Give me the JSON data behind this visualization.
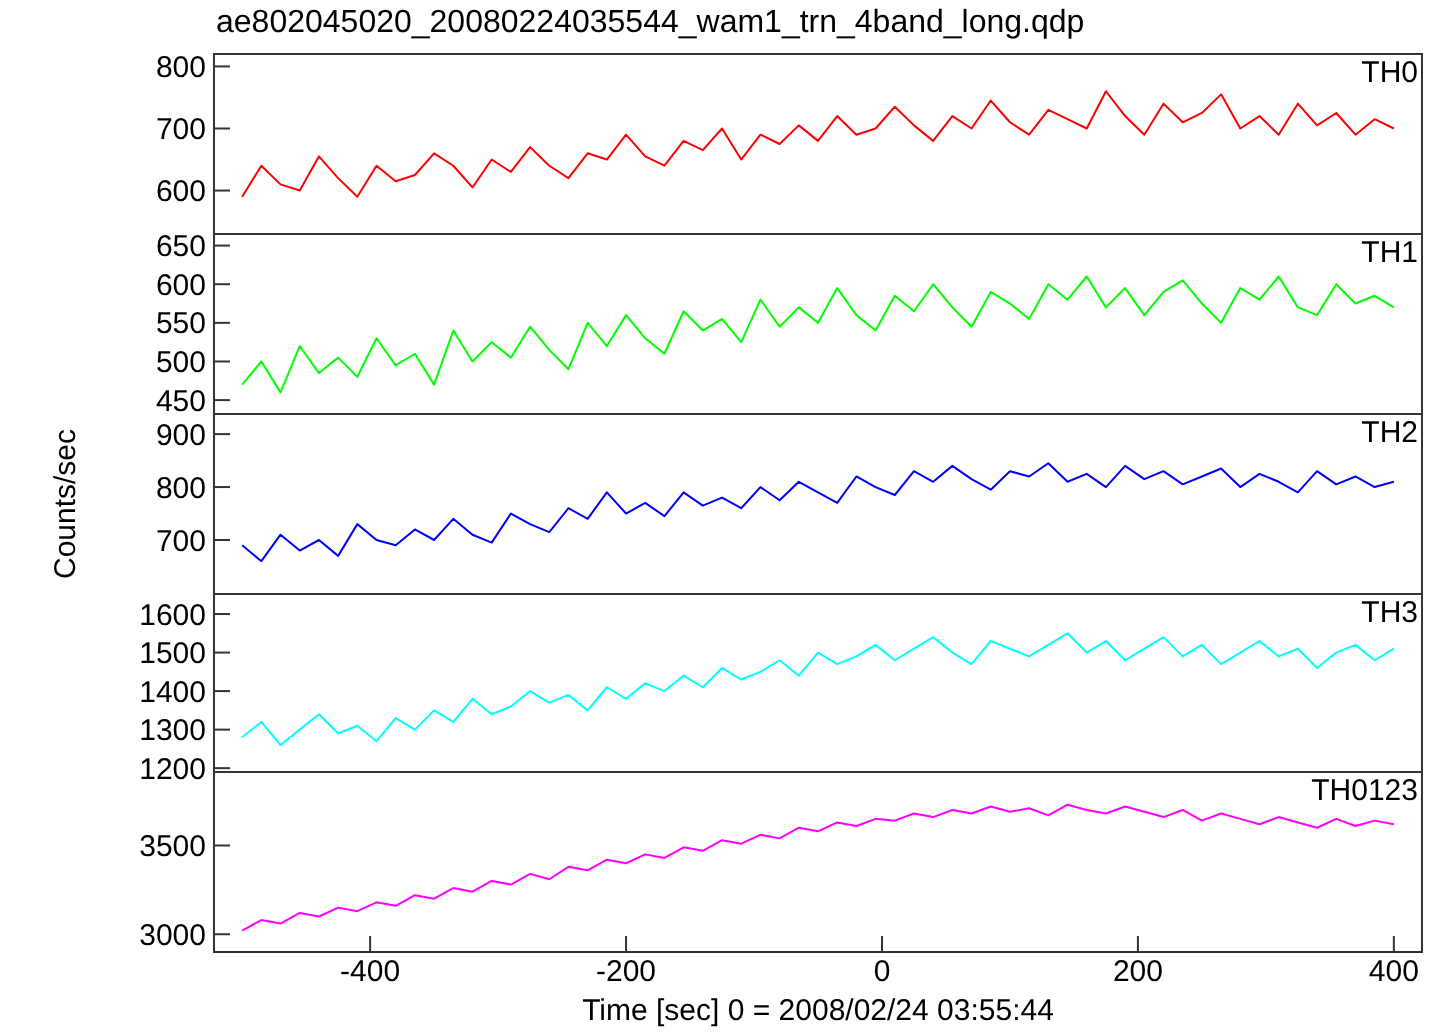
{
  "chart_data": [
    {
      "type": "line",
      "title": "ae802045020_20080224035544_wam1_trn_4band_long.qdp",
      "xlim": [
        -522,
        422
      ],
      "xticks": [
        -400,
        -200,
        0,
        200,
        400
      ],
      "ylim": [
        530,
        820
      ],
      "yticks": [
        600,
        700,
        800
      ],
      "tick_labels": "y",
      "grid": false,
      "marker": "none",
      "line_style": "solid",
      "x": [
        -500,
        -485,
        -470,
        -455,
        -440,
        -425,
        -410,
        -395,
        -380,
        -365,
        -350,
        -335,
        -320,
        -305,
        -290,
        -275,
        -260,
        -245,
        -230,
        -215,
        -200,
        -185,
        -170,
        -155,
        -140,
        -125,
        -110,
        -95,
        -80,
        -65,
        -50,
        -35,
        -20,
        -5,
        10,
        25,
        40,
        55,
        70,
        85,
        100,
        115,
        130,
        145,
        160,
        175,
        190,
        205,
        220,
        235,
        250,
        265,
        280,
        295,
        310,
        325,
        340,
        355,
        370,
        385,
        400
      ],
      "series": [
        {
          "name": "TH0",
          "color": "#ff0000",
          "values": [
            590,
            640,
            610,
            600,
            655,
            620,
            590,
            640,
            615,
            625,
            660,
            640,
            605,
            650,
            630,
            670,
            640,
            620,
            660,
            650,
            690,
            655,
            640,
            680,
            665,
            700,
            650,
            690,
            675,
            705,
            680,
            720,
            690,
            700,
            735,
            705,
            680,
            720,
            700,
            745,
            710,
            690,
            730,
            715,
            700,
            760,
            720,
            690,
            740,
            710,
            725,
            755,
            700,
            720,
            690,
            740,
            705,
            725,
            690,
            715,
            700
          ]
        }
      ]
    },
    {
      "type": "line",
      "xlim": [
        -522,
        422
      ],
      "xticks": [
        -400,
        -200,
        0,
        200,
        400
      ],
      "ylim": [
        432,
        665
      ],
      "yticks": [
        450,
        500,
        550,
        600,
        650
      ],
      "tick_labels": "y",
      "grid": false,
      "marker": "none",
      "line_style": "solid",
      "x": [
        -500,
        -485,
        -470,
        -455,
        -440,
        -425,
        -410,
        -395,
        -380,
        -365,
        -350,
        -335,
        -320,
        -305,
        -290,
        -275,
        -260,
        -245,
        -230,
        -215,
        -200,
        -185,
        -170,
        -155,
        -140,
        -125,
        -110,
        -95,
        -80,
        -65,
        -50,
        -35,
        -20,
        -5,
        10,
        25,
        40,
        55,
        70,
        85,
        100,
        115,
        130,
        145,
        160,
        175,
        190,
        205,
        220,
        235,
        250,
        265,
        280,
        295,
        310,
        325,
        340,
        355,
        370,
        385,
        400
      ],
      "series": [
        {
          "name": "TH1",
          "color": "#00ff00",
          "values": [
            470,
            500,
            460,
            520,
            485,
            505,
            480,
            530,
            495,
            510,
            470,
            540,
            500,
            525,
            505,
            545,
            515,
            490,
            550,
            520,
            560,
            530,
            510,
            565,
            540,
            555,
            525,
            580,
            545,
            570,
            550,
            595,
            560,
            540,
            585,
            565,
            600,
            570,
            545,
            590,
            575,
            555,
            600,
            580,
            610,
            570,
            595,
            560,
            590,
            605,
            575,
            550,
            595,
            580,
            610,
            570,
            560,
            600,
            575,
            585,
            570
          ]
        }
      ]
    },
    {
      "type": "line",
      "ylabel": "Counts/sec",
      "xlim": [
        -522,
        422
      ],
      "xticks": [
        -400,
        -200,
        0,
        200,
        400
      ],
      "ylim": [
        598,
        938
      ],
      "yticks": [
        700,
        800,
        900
      ],
      "tick_labels": "y",
      "grid": false,
      "marker": "none",
      "line_style": "solid",
      "x": [
        -500,
        -485,
        -470,
        -455,
        -440,
        -425,
        -410,
        -395,
        -380,
        -365,
        -350,
        -335,
        -320,
        -305,
        -290,
        -275,
        -260,
        -245,
        -230,
        -215,
        -200,
        -185,
        -170,
        -155,
        -140,
        -125,
        -110,
        -95,
        -80,
        -65,
        -50,
        -35,
        -20,
        -5,
        10,
        25,
        40,
        55,
        70,
        85,
        100,
        115,
        130,
        145,
        160,
        175,
        190,
        205,
        220,
        235,
        250,
        265,
        280,
        295,
        310,
        325,
        340,
        355,
        370,
        385,
        400
      ],
      "series": [
        {
          "name": "TH2",
          "color": "#0000ff",
          "values": [
            690,
            660,
            710,
            680,
            700,
            670,
            730,
            700,
            690,
            720,
            700,
            740,
            710,
            695,
            750,
            730,
            715,
            760,
            740,
            790,
            750,
            770,
            745,
            790,
            765,
            780,
            760,
            800,
            775,
            810,
            790,
            770,
            820,
            800,
            785,
            830,
            810,
            840,
            815,
            795,
            830,
            820,
            845,
            810,
            825,
            800,
            840,
            815,
            830,
            805,
            820,
            835,
            800,
            825,
            810,
            790,
            830,
            805,
            820,
            800,
            810
          ]
        }
      ]
    },
    {
      "type": "line",
      "xlim": [
        -522,
        422
      ],
      "xticks": [
        -400,
        -200,
        0,
        200,
        400
      ],
      "ylim": [
        1190,
        1652
      ],
      "yticks": [
        1200,
        1300,
        1400,
        1500,
        1600
      ],
      "tick_labels": "y",
      "grid": false,
      "marker": "none",
      "line_style": "solid",
      "x": [
        -500,
        -485,
        -470,
        -455,
        -440,
        -425,
        -410,
        -395,
        -380,
        -365,
        -350,
        -335,
        -320,
        -305,
        -290,
        -275,
        -260,
        -245,
        -230,
        -215,
        -200,
        -185,
        -170,
        -155,
        -140,
        -125,
        -110,
        -95,
        -80,
        -65,
        -50,
        -35,
        -20,
        -5,
        10,
        25,
        40,
        55,
        70,
        85,
        100,
        115,
        130,
        145,
        160,
        175,
        190,
        205,
        220,
        235,
        250,
        265,
        280,
        295,
        310,
        325,
        340,
        355,
        370,
        385,
        400
      ],
      "series": [
        {
          "name": "TH3",
          "color": "#00ffff",
          "values": [
            1280,
            1320,
            1260,
            1300,
            1340,
            1290,
            1310,
            1270,
            1330,
            1300,
            1350,
            1320,
            1380,
            1340,
            1360,
            1400,
            1370,
            1390,
            1350,
            1410,
            1380,
            1420,
            1400,
            1440,
            1410,
            1460,
            1430,
            1450,
            1480,
            1440,
            1500,
            1470,
            1490,
            1520,
            1480,
            1510,
            1540,
            1500,
            1470,
            1530,
            1510,
            1490,
            1520,
            1550,
            1500,
            1530,
            1480,
            1510,
            1540,
            1490,
            1520,
            1470,
            1500,
            1530,
            1490,
            1510,
            1460,
            1500,
            1520,
            1480,
            1510
          ]
        }
      ]
    },
    {
      "type": "line",
      "xlabel": "Time [sec] 0 = 2008/02/24 03:55:44",
      "xlim": [
        -522,
        422
      ],
      "xticks": [
        -400,
        -200,
        0,
        200,
        400
      ],
      "ylim": [
        2900,
        3914
      ],
      "yticks": [
        3000,
        3500
      ],
      "grid": false,
      "marker": "none",
      "line_style": "solid",
      "x": [
        -500,
        -485,
        -470,
        -455,
        -440,
        -425,
        -410,
        -395,
        -380,
        -365,
        -350,
        -335,
        -320,
        -305,
        -290,
        -275,
        -260,
        -245,
        -230,
        -215,
        -200,
        -185,
        -170,
        -155,
        -140,
        -125,
        -110,
        -95,
        -80,
        -65,
        -50,
        -35,
        -20,
        -5,
        10,
        25,
        40,
        55,
        70,
        85,
        100,
        115,
        130,
        145,
        160,
        175,
        190,
        205,
        220,
        235,
        250,
        265,
        280,
        295,
        310,
        325,
        340,
        355,
        370,
        385,
        400
      ],
      "series": [
        {
          "name": "TH0123",
          "color": "#ff00ff",
          "values": [
            3020,
            3080,
            3060,
            3120,
            3100,
            3150,
            3130,
            3180,
            3160,
            3220,
            3200,
            3260,
            3240,
            3300,
            3280,
            3340,
            3310,
            3380,
            3360,
            3420,
            3400,
            3450,
            3430,
            3490,
            3470,
            3530,
            3510,
            3560,
            3540,
            3600,
            3580,
            3630,
            3610,
            3650,
            3640,
            3680,
            3660,
            3700,
            3680,
            3720,
            3690,
            3710,
            3670,
            3730,
            3700,
            3680,
            3720,
            3690,
            3660,
            3700,
            3640,
            3680,
            3650,
            3620,
            3660,
            3630,
            3600,
            3650,
            3610,
            3640,
            3620
          ]
        }
      ]
    }
  ]
}
